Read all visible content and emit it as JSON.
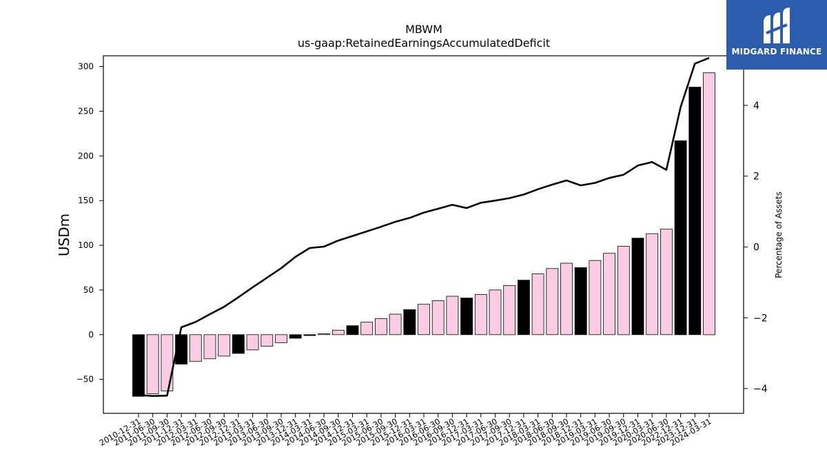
{
  "brand": {
    "name": "MIDGARD FINANCE",
    "bg_color": "#2b5cae"
  },
  "chart_data": {
    "type": "bar",
    "title": "MBWM",
    "subtitle": "us-gaap:RetainedEarningsAccumulatedDeficit",
    "ylabel": "USDm",
    "y2label": "Percentage of Assets",
    "ylim": [
      -88,
      312
    ],
    "y2lim": [
      -4.7,
      5.4
    ],
    "yticks": [
      -50,
      0,
      50,
      100,
      150,
      200,
      250,
      300
    ],
    "y2ticks": [
      -4,
      -2,
      0,
      2,
      4
    ],
    "colors": {
      "pink": "#f9cce3",
      "black": "#000000"
    },
    "categories": [
      "2010-12-31",
      "2011-06-30",
      "2011-09-30",
      "2011-12-31",
      "2012-03-31",
      "2012-06-30",
      "2012-09-30",
      "2012-12-31",
      "2013-03-31",
      "2013-06-30",
      "2013-09-30",
      "2013-12-31",
      "2014-03-31",
      "2014-06-30",
      "2014-09-30",
      "2014-12-31",
      "2015-03-31",
      "2015-06-30",
      "2015-09-30",
      "2015-12-31",
      "2016-03-31",
      "2016-06-30",
      "2016-09-30",
      "2016-12-31",
      "2017-03-31",
      "2017-06-30",
      "2017-09-30",
      "2017-12-31",
      "2018-03-31",
      "2018-06-30",
      "2018-09-30",
      "2018-12-31",
      "2019-03-31",
      "2019-06-30",
      "2019-09-30",
      "2019-12-31",
      "2020-03-31",
      "2020-06-30",
      "2022-12-31",
      "2023-12-31",
      "2024-03-31"
    ],
    "values": [
      -69,
      -66,
      -63,
      -33,
      -30,
      -27,
      -24,
      -21,
      -17,
      -13,
      -9,
      -4,
      -1,
      1,
      5,
      10,
      14,
      18,
      23,
      28,
      34,
      38,
      43,
      41,
      45,
      50,
      55,
      61,
      68,
      74,
      80,
      75,
      83,
      91,
      99,
      108,
      113,
      118,
      217,
      277,
      293
    ],
    "bar_colors": [
      "black",
      "pink",
      "pink",
      "black",
      "pink",
      "pink",
      "pink",
      "black",
      "pink",
      "pink",
      "pink",
      "black",
      "black",
      "pink",
      "pink",
      "black",
      "pink",
      "pink",
      "pink",
      "black",
      "pink",
      "pink",
      "pink",
      "black",
      "pink",
      "pink",
      "pink",
      "black",
      "pink",
      "pink",
      "pink",
      "black",
      "pink",
      "pink",
      "pink",
      "black",
      "pink",
      "pink",
      "black",
      "black",
      "pink"
    ],
    "series": [
      {
        "type": "line",
        "axis": "right",
        "values": [
          -4.18,
          -4.21,
          -4.2,
          -2.27,
          -2.12,
          -1.9,
          -1.69,
          -1.42,
          -1.14,
          -0.87,
          -0.6,
          -0.28,
          -0.03,
          0.01,
          0.18,
          0.31,
          0.44,
          0.57,
          0.71,
          0.82,
          0.97,
          1.08,
          1.19,
          1.1,
          1.25,
          1.31,
          1.38,
          1.48,
          1.63,
          1.76,
          1.88,
          1.74,
          1.81,
          1.95,
          2.04,
          2.3,
          2.4,
          2.18,
          3.95,
          5.18,
          5.34
        ]
      }
    ]
  }
}
